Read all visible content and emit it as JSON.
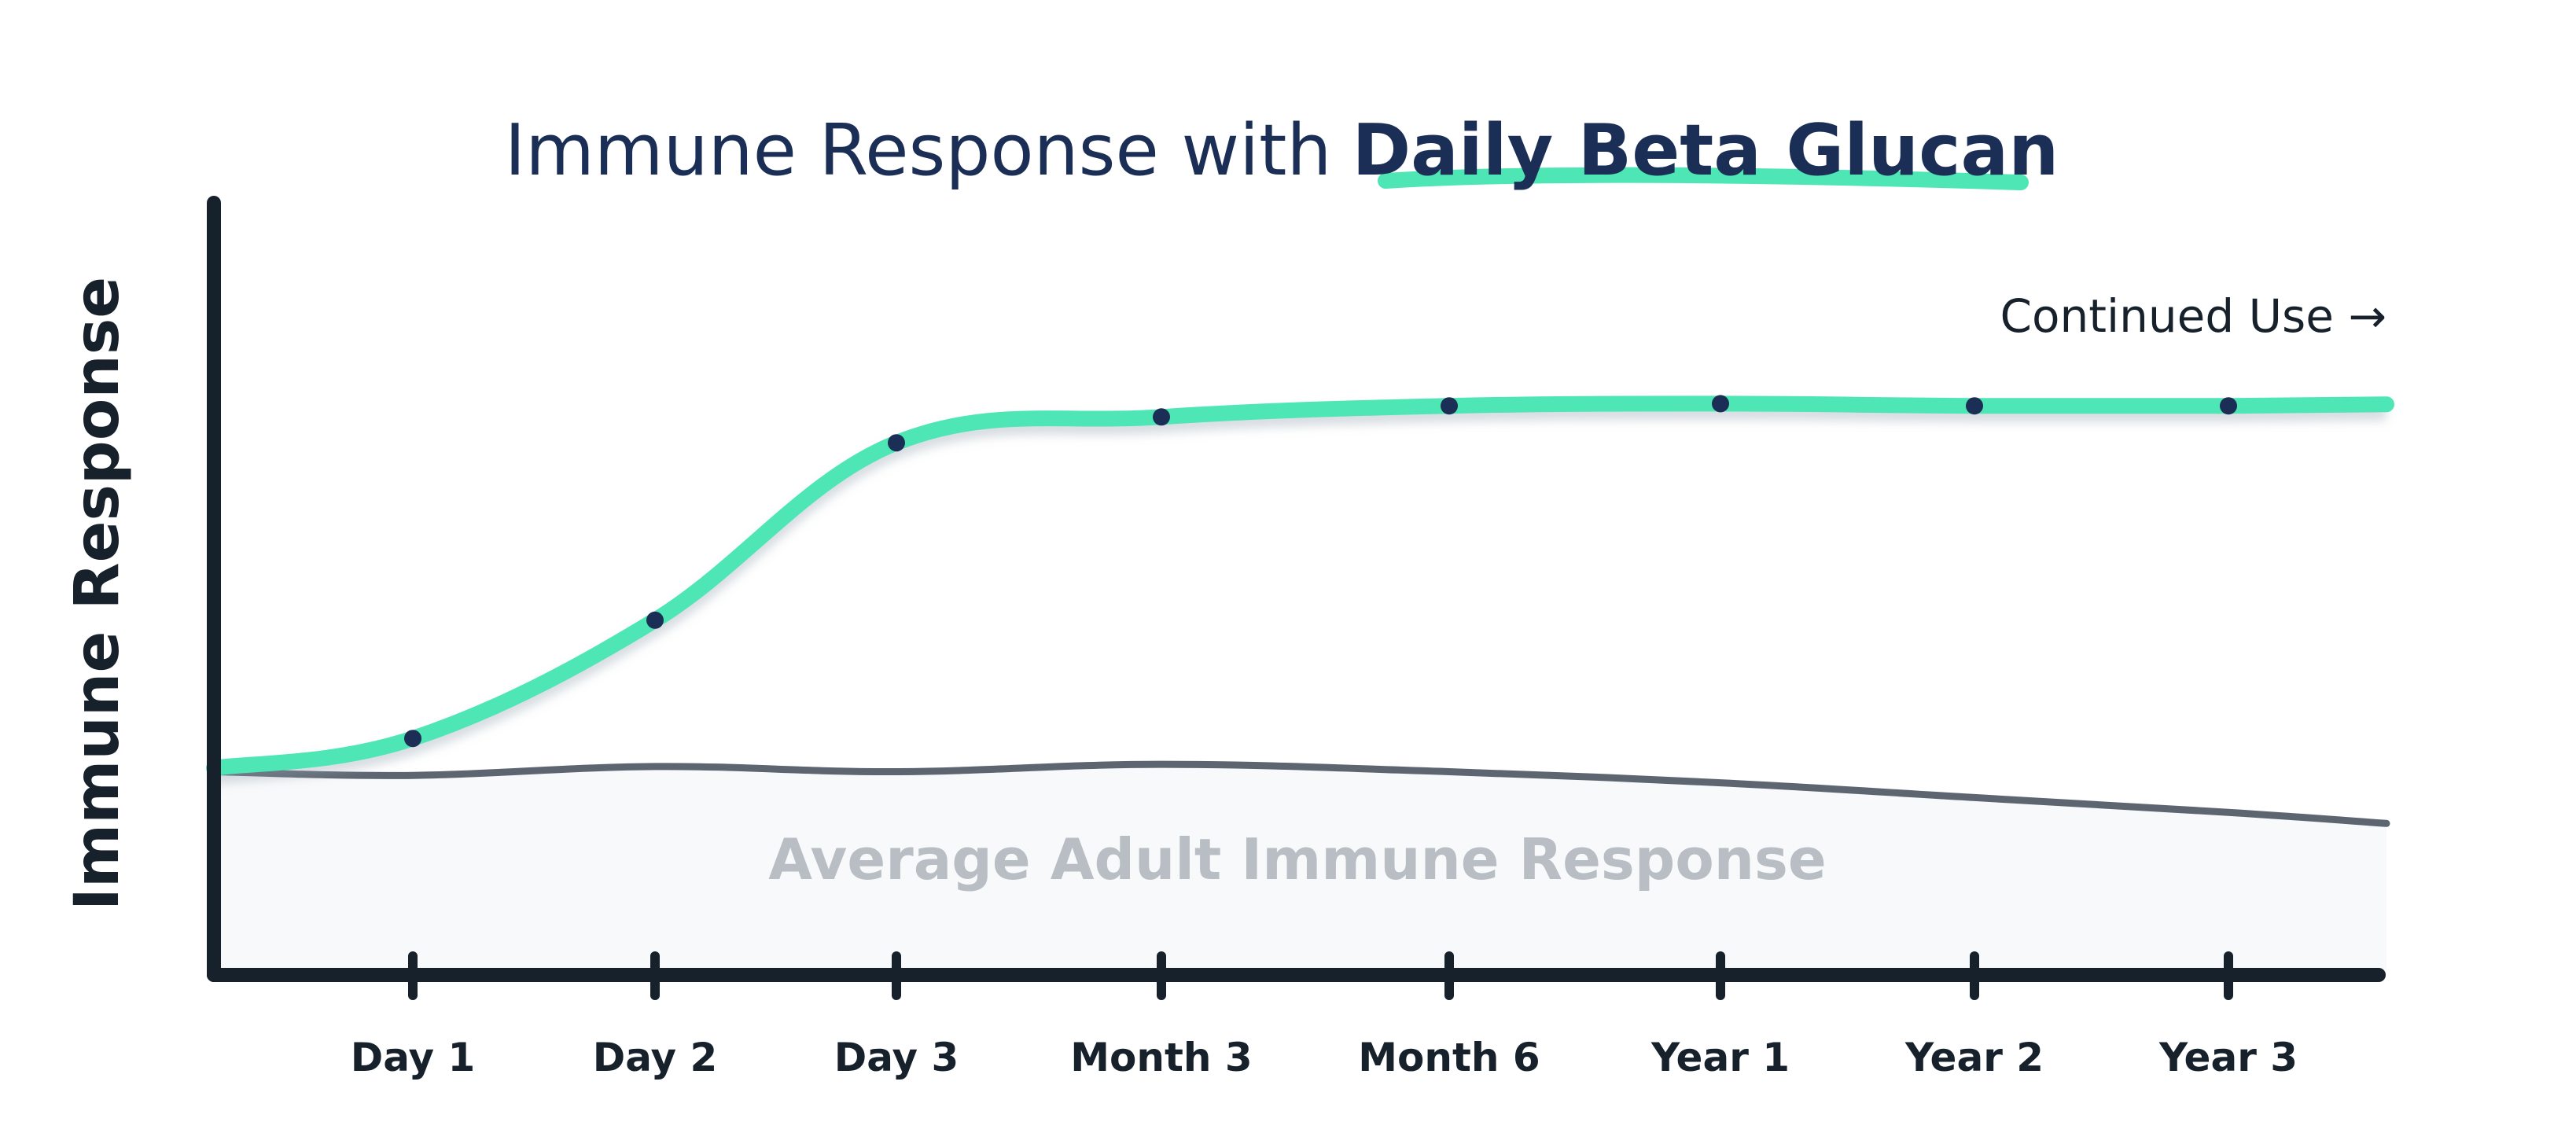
{
  "colors": {
    "accent": "#4DE6B4",
    "navy": "#1B2E55",
    "axis": "#17212B",
    "baseline_line": "#5D6670",
    "baseline_fill": "#F8F9FA",
    "baseline_label": "#B9BEC4",
    "marker": "#1B2E55"
  },
  "chart_data": {
    "type": "line",
    "title": {
      "prefix": "Immune Response with",
      "highlight": "Daily Beta Glucan"
    },
    "xlabel": "",
    "ylabel": "Immune Response",
    "categories": [
      "Day 1",
      "Day 2",
      "Day 3",
      "Month 3",
      "Month 6",
      "Year 1",
      "Year 2",
      "Year 3"
    ],
    "ylim": [
      0,
      100
    ],
    "grid": false,
    "annotations": {
      "continued_use": "Continued Use →",
      "baseline_area_label": "Average Adult Immune Response"
    },
    "series": [
      {
        "role": "beta-glucan",
        "start_value": 28,
        "values": [
          32,
          48,
          72,
          75.5,
          77,
          77.3,
          77,
          77
        ],
        "end_value": 77.2,
        "markers": true
      },
      {
        "role": "average-adult",
        "start_value": 27.5,
        "values": [
          27,
          28.2,
          27.5,
          28.5,
          27.5,
          26,
          24,
          22
        ],
        "end_value": 20.5,
        "markers": false
      }
    ]
  }
}
